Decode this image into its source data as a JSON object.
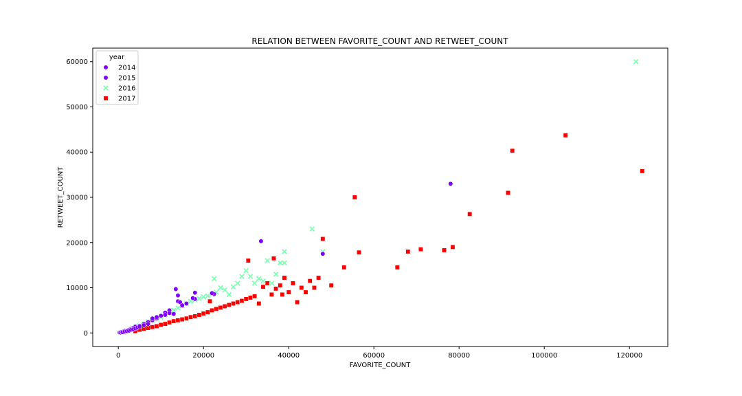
{
  "chart_data": {
    "type": "scatter",
    "title": "RELATION BETWEEN FAVORITE_COUNT AND RETWEET_COUNT",
    "xlabel": "FAVORITE_COUNT",
    "ylabel": "RETWEET_COUNT",
    "xlim": [
      -6000,
      129000
    ],
    "ylim": [
      -3000,
      63000
    ],
    "xticks": [
      0,
      20000,
      40000,
      60000,
      80000,
      100000,
      120000
    ],
    "yticks": [
      0,
      10000,
      20000,
      30000,
      40000,
      50000,
      60000
    ],
    "grid": false,
    "legend": {
      "title": "year",
      "placement": "top-left"
    },
    "series": [
      {
        "name": "2014",
        "marker": "circle",
        "color": "#8000ff",
        "points": [
          [
            300,
            100
          ],
          [
            600,
            200
          ],
          [
            900,
            250
          ],
          [
            1200,
            350
          ],
          [
            1500,
            450
          ],
          [
            2000,
            500
          ],
          [
            2500,
            700
          ],
          [
            3000,
            900
          ],
          [
            3500,
            1100
          ],
          [
            4000,
            1400
          ],
          [
            5000,
            1600
          ],
          [
            6000,
            2000
          ],
          [
            7000,
            2400
          ],
          [
            8000,
            2800
          ],
          [
            9000,
            3200
          ],
          [
            10000,
            3800
          ],
          [
            11000,
            4500
          ],
          [
            12000,
            5000
          ],
          [
            14000,
            7000
          ],
          [
            15000,
            6000
          ],
          [
            16000,
            6500
          ],
          [
            18000,
            7500
          ],
          [
            22500,
            8600
          ],
          [
            48000,
            17500
          ]
        ]
      },
      {
        "name": "2015",
        "marker": "circle",
        "color": "#8000ff",
        "points": [
          [
            500,
            100
          ],
          [
            800,
            200
          ],
          [
            1000,
            150
          ],
          [
            1500,
            300
          ],
          [
            2000,
            400
          ],
          [
            2500,
            500
          ],
          [
            3000,
            700
          ],
          [
            3500,
            800
          ],
          [
            4000,
            1000
          ],
          [
            4500,
            1200
          ],
          [
            5000,
            1400
          ],
          [
            6000,
            1700
          ],
          [
            7000,
            2000
          ],
          [
            8000,
            3200
          ],
          [
            9000,
            3500
          ],
          [
            10000,
            3800
          ],
          [
            11000,
            4000
          ],
          [
            12000,
            4400
          ],
          [
            13000,
            4200
          ],
          [
            13500,
            9700
          ],
          [
            14000,
            8300
          ],
          [
            14500,
            6800
          ],
          [
            15000,
            6100
          ],
          [
            17500,
            7700
          ],
          [
            18000,
            8900
          ],
          [
            22000,
            8800
          ],
          [
            33500,
            20300
          ],
          [
            78000,
            33000
          ]
        ]
      },
      {
        "name": "2016",
        "marker": "x",
        "color": "#80ffb4",
        "points": [
          [
            1000,
            200
          ],
          [
            2000,
            500
          ],
          [
            3000,
            900
          ],
          [
            4000,
            1300
          ],
          [
            5000,
            1600
          ],
          [
            6000,
            2000
          ],
          [
            7000,
            2500
          ],
          [
            8000,
            2800
          ],
          [
            9000,
            3200
          ],
          [
            10000,
            3500
          ],
          [
            11000,
            4000
          ],
          [
            12000,
            4500
          ],
          [
            13000,
            5000
          ],
          [
            14000,
            5500
          ],
          [
            15000,
            6000
          ],
          [
            16000,
            6500
          ],
          [
            17000,
            7000
          ],
          [
            18000,
            7300
          ],
          [
            19000,
            7600
          ],
          [
            20000,
            8000
          ],
          [
            21000,
            8200
          ],
          [
            22000,
            8500
          ],
          [
            22500,
            12000
          ],
          [
            23000,
            9000
          ],
          [
            24000,
            10000
          ],
          [
            25000,
            9500
          ],
          [
            26000,
            8500
          ],
          [
            27000,
            10200
          ],
          [
            28000,
            11000
          ],
          [
            29000,
            12500
          ],
          [
            30000,
            13800
          ],
          [
            31000,
            12500
          ],
          [
            32000,
            11000
          ],
          [
            33000,
            12000
          ],
          [
            34000,
            11500
          ],
          [
            35000,
            16000
          ],
          [
            36000,
            11000
          ],
          [
            37000,
            13000
          ],
          [
            38000,
            15500
          ],
          [
            39000,
            15500
          ],
          [
            39000,
            18000
          ],
          [
            45500,
            23000
          ],
          [
            48000,
            18000
          ],
          [
            121500,
            60000
          ]
        ]
      },
      {
        "name": "2017",
        "marker": "square",
        "color": "#ff0000",
        "points": [
          [
            4000,
            400
          ],
          [
            5000,
            700
          ],
          [
            6000,
            900
          ],
          [
            7000,
            1100
          ],
          [
            8000,
            1300
          ],
          [
            9000,
            1500
          ],
          [
            10000,
            1800
          ],
          [
            11000,
            2000
          ],
          [
            12000,
            2300
          ],
          [
            13000,
            2600
          ],
          [
            14000,
            2800
          ],
          [
            15000,
            3000
          ],
          [
            16000,
            3200
          ],
          [
            17000,
            3500
          ],
          [
            18000,
            3700
          ],
          [
            19000,
            4000
          ],
          [
            20000,
            4300
          ],
          [
            21000,
            4600
          ],
          [
            21500,
            7000
          ],
          [
            22000,
            5000
          ],
          [
            23000,
            5300
          ],
          [
            24000,
            5600
          ],
          [
            25000,
            5900
          ],
          [
            26000,
            6200
          ],
          [
            27000,
            6500
          ],
          [
            28000,
            6800
          ],
          [
            29000,
            7100
          ],
          [
            30000,
            7500
          ],
          [
            30500,
            16000
          ],
          [
            31000,
            7800
          ],
          [
            32000,
            8100
          ],
          [
            33000,
            6500
          ],
          [
            34000,
            10200
          ],
          [
            35000,
            11000
          ],
          [
            36000,
            8500
          ],
          [
            36500,
            16500
          ],
          [
            37000,
            9800
          ],
          [
            38000,
            10500
          ],
          [
            38500,
            8500
          ],
          [
            39000,
            12200
          ],
          [
            40000,
            9000
          ],
          [
            41000,
            11000
          ],
          [
            42000,
            6800
          ],
          [
            43000,
            10000
          ],
          [
            44000,
            9000
          ],
          [
            45000,
            11500
          ],
          [
            46000,
            10000
          ],
          [
            47000,
            12200
          ],
          [
            48000,
            20800
          ],
          [
            50000,
            10500
          ],
          [
            53000,
            14500
          ],
          [
            55500,
            30000
          ],
          [
            56500,
            17800
          ],
          [
            65500,
            14500
          ],
          [
            68000,
            18000
          ],
          [
            71000,
            18500
          ],
          [
            76500,
            18300
          ],
          [
            78500,
            19000
          ],
          [
            82500,
            26300
          ],
          [
            91500,
            31000
          ],
          [
            92500,
            40300
          ],
          [
            105000,
            43700
          ],
          [
            123000,
            35800
          ]
        ]
      }
    ]
  }
}
